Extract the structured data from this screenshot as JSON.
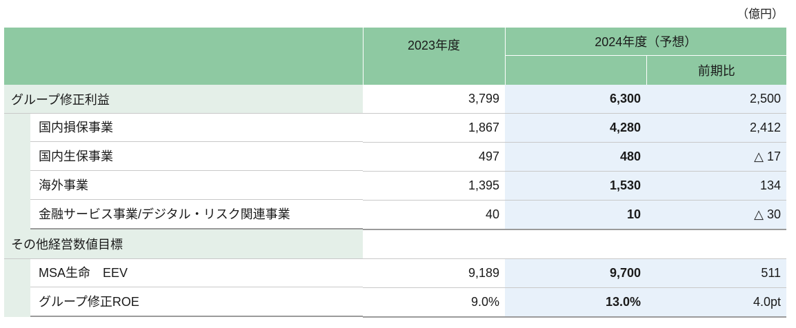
{
  "unit": "（億円）",
  "header": {
    "col_2023": "2023年度",
    "col_2024": "2024年度（予想）",
    "col_yoy": "前期比"
  },
  "rows": [
    {
      "label": "グループ修正利益",
      "v2023": "3,799",
      "v2024": "6,300",
      "yoy": "2,500"
    },
    {
      "label": "国内損保事業",
      "v2023": "1,867",
      "v2024": "4,280",
      "yoy": "2,412"
    },
    {
      "label": "国内生保事業",
      "v2023": "497",
      "v2024": "480",
      "yoy": "△ 17"
    },
    {
      "label": "海外事業",
      "v2023": "1,395",
      "v2024": "1,530",
      "yoy": "134"
    },
    {
      "label": "金融サービス事業/デジタル・リスク関連事業",
      "v2023": "40",
      "v2024": "10",
      "yoy": "△ 30"
    }
  ],
  "section2": {
    "label": "その他経営数値目標",
    "rows": [
      {
        "label": "MSA生命　EEV",
        "v2023": "9,189",
        "v2024": "9,700",
        "yoy": "511"
      },
      {
        "label": "グループ修正ROE",
        "v2023": "9.0%",
        "v2024": "13.0%",
        "yoy": "4.0pt"
      }
    ]
  },
  "colors": {
    "header_green": "#8ec9a2",
    "label_tint": "#e4efe8",
    "forecast_blue": "#e8f1fa"
  }
}
